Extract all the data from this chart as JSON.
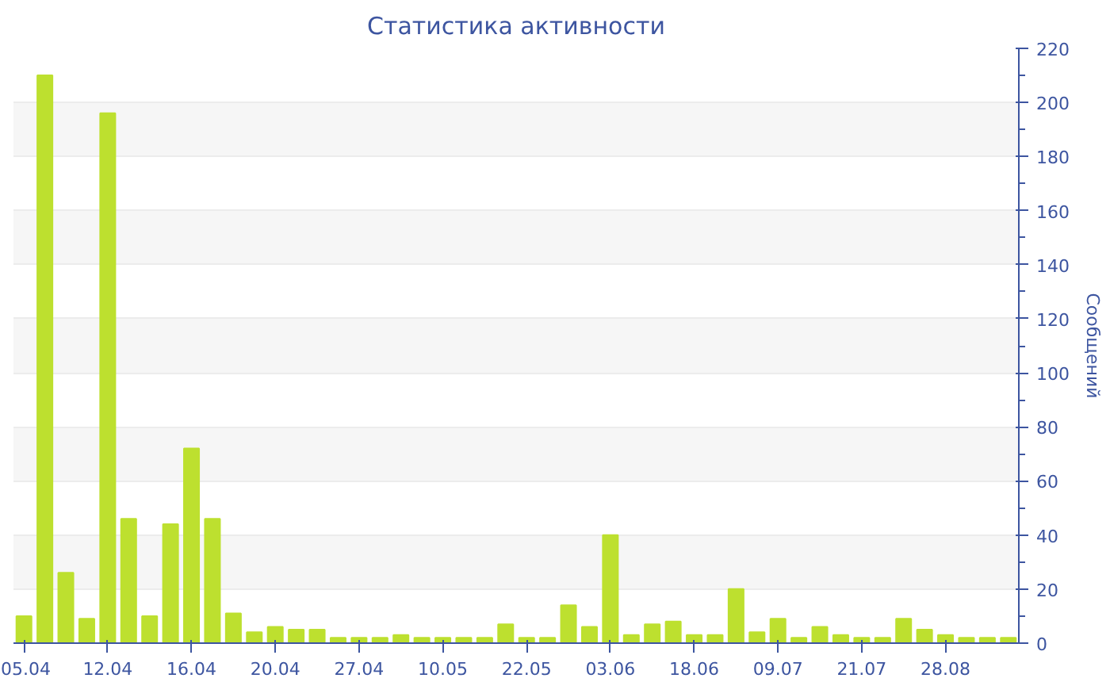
{
  "chart_data": {
    "type": "bar",
    "title": "Статистика активности",
    "ylabel": "Сообщений",
    "categories": [
      "05.04",
      null,
      null,
      null,
      "12.04",
      null,
      null,
      null,
      "16.04",
      null,
      null,
      null,
      "20.04",
      null,
      null,
      null,
      "27.04",
      null,
      null,
      null,
      "10.05",
      null,
      null,
      null,
      "22.05",
      null,
      null,
      null,
      "03.06",
      null,
      null,
      null,
      "18.06",
      null,
      null,
      null,
      "09.07",
      null,
      null,
      null,
      "21.07",
      null,
      null,
      null,
      "28.08",
      null,
      null,
      null
    ],
    "values": [
      10,
      210,
      26,
      9,
      196,
      46,
      10,
      44,
      72,
      46,
      11,
      4,
      6,
      5,
      5,
      2,
      2,
      2,
      3,
      2,
      2,
      2,
      2,
      7,
      2,
      2,
      14,
      6,
      40,
      3,
      7,
      8,
      3,
      3,
      20,
      4,
      9,
      2,
      6,
      3,
      2,
      2,
      9,
      5,
      3,
      2,
      2,
      2
    ],
    "color": "#bde02f",
    "ylim": [
      0,
      220
    ],
    "yticks": [
      0,
      20,
      40,
      60,
      80,
      100,
      120,
      140,
      160,
      180,
      200,
      220
    ],
    "grid": "y"
  }
}
